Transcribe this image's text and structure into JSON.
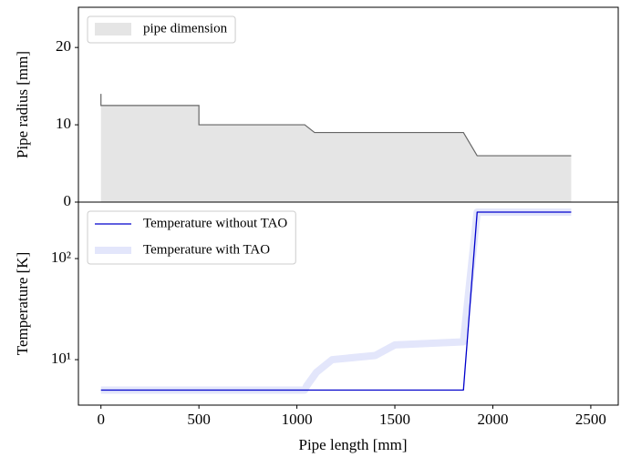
{
  "chart_data": [
    {
      "type": "area",
      "ylabel": "Pipe radius [mm]",
      "x": [
        0,
        0,
        500,
        500,
        1040,
        1090,
        1850,
        1920,
        2400
      ],
      "series": [
        {
          "name": "pipe dimension",
          "color": "#e5e5e5",
          "line_color": "#666666",
          "values": [
            14,
            12.5,
            12.5,
            10,
            10,
            9,
            9,
            6,
            6
          ]
        }
      ],
      "xlim": [
        -115,
        2640
      ],
      "ylim": [
        0,
        25.2
      ],
      "yticks": [
        0,
        10,
        20
      ],
      "legend": "upper left"
    },
    {
      "type": "line",
      "xlabel": "Pipe length [mm]",
      "ylabel": "Temperature [K]",
      "log": true,
      "x": [
        0,
        1040,
        1050,
        1100,
        1180,
        1400,
        1500,
        1850,
        1920,
        2400
      ],
      "series": [
        {
          "name": "Temperature without TAO",
          "color": "#0000cc",
          "linewidth": 1.3,
          "values": [
            5,
            5,
            5,
            5,
            5,
            5,
            5,
            5,
            288,
            288
          ]
        },
        {
          "name": "Temperature with TAO",
          "color": "#e3e6fb",
          "linewidth": 8,
          "values": [
            5,
            5,
            5.5,
            7.5,
            10,
            11,
            14,
            15,
            288,
            288
          ]
        }
      ],
      "xlim": [
        -115,
        2640
      ],
      "ylim": [
        3.55,
        362
      ],
      "xticks": [
        0,
        500,
        1000,
        1500,
        2000,
        2500
      ],
      "yticks": [
        {
          "value": 10,
          "label": "10¹"
        },
        {
          "value": 100,
          "label": "10²"
        }
      ],
      "legend": "upper left"
    }
  ]
}
